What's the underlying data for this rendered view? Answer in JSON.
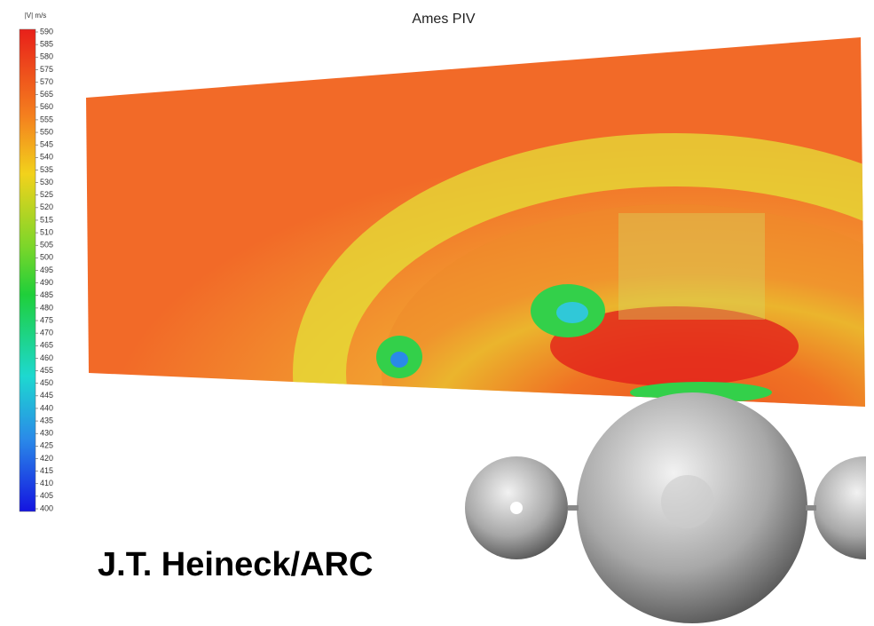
{
  "title": "Ames PIV",
  "colorbar": {
    "label": "|V| m/s",
    "ticks": [
      590,
      585,
      580,
      575,
      570,
      565,
      560,
      555,
      550,
      545,
      540,
      535,
      530,
      525,
      520,
      515,
      510,
      505,
      500,
      495,
      490,
      485,
      480,
      475,
      470,
      465,
      460,
      455,
      450,
      445,
      440,
      435,
      430,
      425,
      420,
      415,
      410,
      405,
      400
    ]
  },
  "credit": "J.T. Heineck/ARC"
}
